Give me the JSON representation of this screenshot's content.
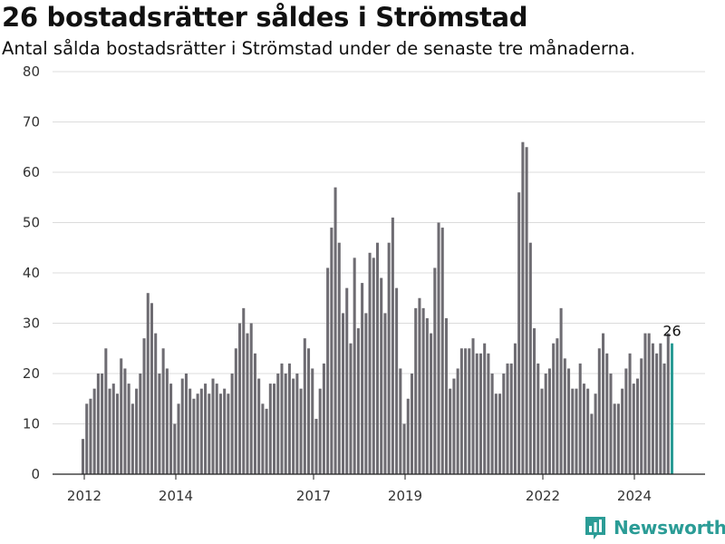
{
  "header": {
    "title": "26 bostadsrätter såldes i Strömstad",
    "subtitle": "Antal sålda bostadsrätter i Strömstad under de senaste tre månaderna."
  },
  "brand": {
    "name": "Newsworthy",
    "icon": "newsworthy-logo-icon",
    "color": "#2b9c96"
  },
  "chart_data": {
    "type": "bar",
    "title": "26 bostadsrätter såldes i Strömstad",
    "subtitle": "Antal sålda bostadsrätter i Strömstad under de senaste tre månaderna.",
    "xlabel": "",
    "ylabel": "",
    "ylim": [
      0,
      80
    ],
    "y_ticks": [
      0,
      10,
      20,
      30,
      40,
      50,
      60,
      70,
      80
    ],
    "x_ticks": [
      "2012",
      "2014",
      "2017",
      "2019",
      "2022",
      "2024"
    ],
    "grid": true,
    "bar_color": "#6e6c72",
    "highlight_color": "#2b9c96",
    "highlight_last": true,
    "last_value_label": "26",
    "values": [
      7,
      14,
      15,
      17,
      20,
      20,
      25,
      17,
      18,
      16,
      23,
      21,
      18,
      14,
      17,
      20,
      27,
      36,
      34,
      28,
      20,
      25,
      21,
      18,
      10,
      14,
      19,
      20,
      17,
      15,
      16,
      17,
      18,
      16,
      19,
      18,
      16,
      17,
      16,
      20,
      25,
      30,
      33,
      28,
      30,
      24,
      19,
      14,
      13,
      18,
      18,
      20,
      22,
      20,
      22,
      19,
      20,
      17,
      27,
      25,
      21,
      11,
      17,
      22,
      41,
      49,
      57,
      46,
      32,
      37,
      26,
      43,
      29,
      38,
      32,
      44,
      43,
      46,
      39,
      32,
      46,
      51,
      37,
      21,
      10,
      15,
      20,
      33,
      35,
      33,
      31,
      28,
      41,
      50,
      49,
      31,
      17,
      19,
      21,
      25,
      25,
      25,
      27,
      24,
      24,
      26,
      24,
      20,
      16,
      16,
      20,
      22,
      22,
      26,
      56,
      66,
      65,
      46,
      29,
      22,
      17,
      20,
      21,
      26,
      27,
      33,
      23,
      21,
      17,
      17,
      22,
      18,
      17,
      12,
      16,
      25,
      28,
      24,
      20,
      14,
      14,
      17,
      21,
      24,
      18,
      19,
      23,
      28,
      28,
      26,
      24,
      26,
      22,
      28,
      26
    ]
  }
}
